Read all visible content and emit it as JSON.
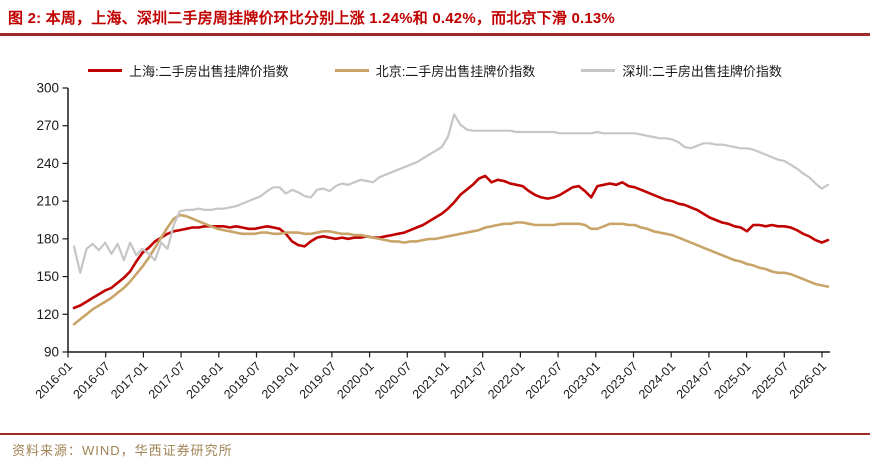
{
  "title": {
    "text": "图 2: 本周，上海、深圳二手房周挂牌价环比分别上涨 1.24%和 0.42%，而北京下滑 0.13%"
  },
  "footer": {
    "text": "资料来源：WIND，华西证券研究所"
  },
  "colors": {
    "title_red": "#C00000",
    "divider_red": "#9E2B25",
    "source_text": "#A08354",
    "axis_black": "#1a1a1a",
    "shanghai_red": "#C00000",
    "beijing_tan": "#C9A469",
    "shenzhen_gray": "#C6C6C6"
  },
  "chart_data": {
    "type": "line",
    "title": "",
    "xlabel": "",
    "ylabel": "",
    "grid": false,
    "legend_position": "top",
    "ylim": [
      90,
      300
    ],
    "y_ticks": [
      90,
      120,
      150,
      180,
      210,
      240,
      270,
      300
    ],
    "x_tick_labels": [
      "2016-01",
      "2016-07",
      "2017-01",
      "2017-07",
      "2018-01",
      "2018-07",
      "2019-01",
      "2019-07",
      "2020-01",
      "2020-07",
      "2021-01",
      "2021-07",
      "2022-01",
      "2022-07",
      "2023-01",
      "2023-07",
      "2024-01",
      "2024-07",
      "2025-01",
      "2025-07",
      "2026-01"
    ],
    "x_monthly_domain": {
      "start": "2016-01",
      "end": "2026-02",
      "points_per_series": 122
    },
    "series": [
      {
        "id": "shanghai",
        "name": "上海:二手房出售挂牌价指数",
        "color": "#C00000",
        "values": [
          125,
          127,
          130,
          133,
          136,
          139,
          141,
          145,
          149,
          154,
          162,
          169,
          173,
          178,
          181,
          184,
          186,
          187,
          188,
          189,
          189,
          190,
          190,
          190,
          190,
          189,
          190,
          189,
          188,
          188,
          189,
          190,
          189,
          188,
          184,
          178,
          175,
          174,
          178,
          181,
          182,
          181,
          180,
          181,
          180,
          181,
          181,
          182,
          181,
          181,
          182,
          183,
          184,
          185,
          187,
          189,
          191,
          194,
          197,
          200,
          204,
          209,
          215,
          219,
          223,
          228,
          230,
          225,
          227,
          226,
          224,
          223,
          222,
          218,
          215,
          213,
          212,
          213,
          215,
          218,
          221,
          222,
          218,
          213,
          222,
          223,
          224,
          223,
          225,
          222,
          221,
          219,
          217,
          215,
          213,
          211,
          210,
          208,
          207,
          205,
          203,
          200,
          197,
          195,
          193,
          192,
          190,
          189,
          186,
          191,
          191,
          190,
          191,
          190,
          190,
          189,
          187,
          184,
          182,
          179,
          177,
          179
        ]
      },
      {
        "id": "beijing",
        "name": "北京:二手房出售挂牌价指数",
        "color": "#C9A469",
        "values": [
          112,
          116,
          120,
          124,
          127,
          130,
          133,
          137,
          141,
          146,
          152,
          158,
          165,
          173,
          181,
          189,
          196,
          199,
          198,
          196,
          194,
          192,
          190,
          188,
          187,
          186,
          185,
          184,
          184,
          184,
          185,
          185,
          184,
          184,
          185,
          185,
          185,
          184,
          184,
          185,
          186,
          186,
          185,
          184,
          184,
          183,
          183,
          182,
          181,
          180,
          179,
          178,
          178,
          177,
          178,
          178,
          179,
          180,
          180,
          181,
          182,
          183,
          184,
          185,
          186,
          187,
          189,
          190,
          191,
          192,
          192,
          193,
          193,
          192,
          191,
          191,
          191,
          191,
          192,
          192,
          192,
          192,
          191,
          188,
          188,
          190,
          192,
          192,
          192,
          191,
          191,
          189,
          188,
          186,
          185,
          184,
          183,
          181,
          179,
          177,
          175,
          173,
          171,
          169,
          167,
          165,
          163,
          162,
          160,
          159,
          157,
          156,
          154,
          153,
          153,
          152,
          150,
          148,
          146,
          144,
          143,
          142
        ]
      },
      {
        "id": "shenzhen",
        "name": "深圳:二手房出售挂牌价指数",
        "color": "#C6C6C6",
        "values": [
          174,
          153,
          172,
          176,
          171,
          177,
          168,
          176,
          163,
          177,
          167,
          172,
          168,
          163,
          177,
          172,
          191,
          202,
          203,
          203,
          204,
          203,
          203,
          204,
          204,
          205,
          206,
          208,
          210,
          212,
          214,
          218,
          221,
          221,
          216,
          219,
          217,
          214,
          213,
          219,
          220,
          218,
          222,
          224,
          223,
          225,
          227,
          226,
          225,
          229,
          231,
          233,
          235,
          237,
          239,
          241,
          244,
          247,
          250,
          253,
          261,
          279,
          271,
          267,
          266,
          266,
          266,
          266,
          266,
          266,
          266,
          265,
          265,
          265,
          265,
          265,
          265,
          265,
          264,
          264,
          264,
          264,
          264,
          264,
          265,
          264,
          264,
          264,
          264,
          264,
          264,
          263,
          262,
          261,
          260,
          260,
          259,
          257,
          253,
          252,
          254,
          256,
          256,
          255,
          255,
          254,
          253,
          252,
          252,
          251,
          249,
          247,
          245,
          243,
          242,
          239,
          236,
          232,
          229,
          224,
          220,
          223
        ]
      }
    ]
  }
}
